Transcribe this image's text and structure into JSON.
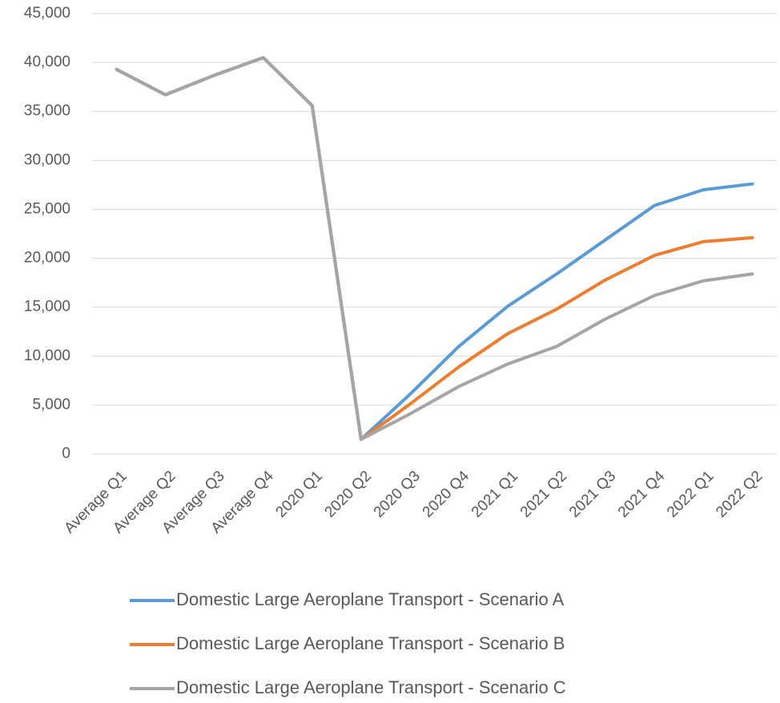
{
  "chart_data": {
    "type": "line",
    "categories": [
      "Average Q1",
      "Average Q2",
      "Average Q3",
      "Average Q4",
      "2020 Q1",
      "2020 Q2",
      "2020 Q3",
      "2020 Q4",
      "2021 Q1",
      "2021 Q2",
      "2021 Q3",
      "2021 Q4",
      "2022 Q1",
      "2022 Q2"
    ],
    "series": [
      {
        "name": "Domestic Large Aeroplane Transport - Scenario A",
        "color": "#5b9bd5",
        "values": [
          39300,
          36700,
          38700,
          40500,
          35600,
          1500,
          6100,
          11000,
          15100,
          18400,
          21900,
          25400,
          27000,
          27600
        ]
      },
      {
        "name": "Domestic Large Aeroplane Transport - Scenario B",
        "color": "#ed7d31",
        "values": [
          39300,
          36700,
          38700,
          40500,
          35600,
          1500,
          5100,
          8900,
          12300,
          14800,
          17800,
          20300,
          21700,
          22100
        ]
      },
      {
        "name": "Domestic Large Aeroplane Transport - Scenario C",
        "color": "#a5a5a5",
        "values": [
          39300,
          36700,
          38700,
          40500,
          35600,
          1500,
          4100,
          6900,
          9200,
          11000,
          13800,
          16200,
          17700,
          18400
        ]
      }
    ],
    "ylim": [
      0,
      45000
    ],
    "yticks": [
      0,
      {
        "value": 5000,
        "label": "5,000"
      },
      {
        "value": 10000,
        "label": "10,000"
      },
      {
        "value": 15000,
        "label": "15,000"
      },
      {
        "value": 20000,
        "label": "20,000"
      },
      {
        "value": 25000,
        "label": "25,000"
      },
      {
        "value": 30000,
        "label": "30,000"
      },
      {
        "value": 35000,
        "label": "35,000"
      },
      {
        "value": 40000,
        "label": "40,000"
      },
      {
        "value": 45000,
        "label": "45,000"
      }
    ],
    "grid": true,
    "legend": "bottom"
  }
}
